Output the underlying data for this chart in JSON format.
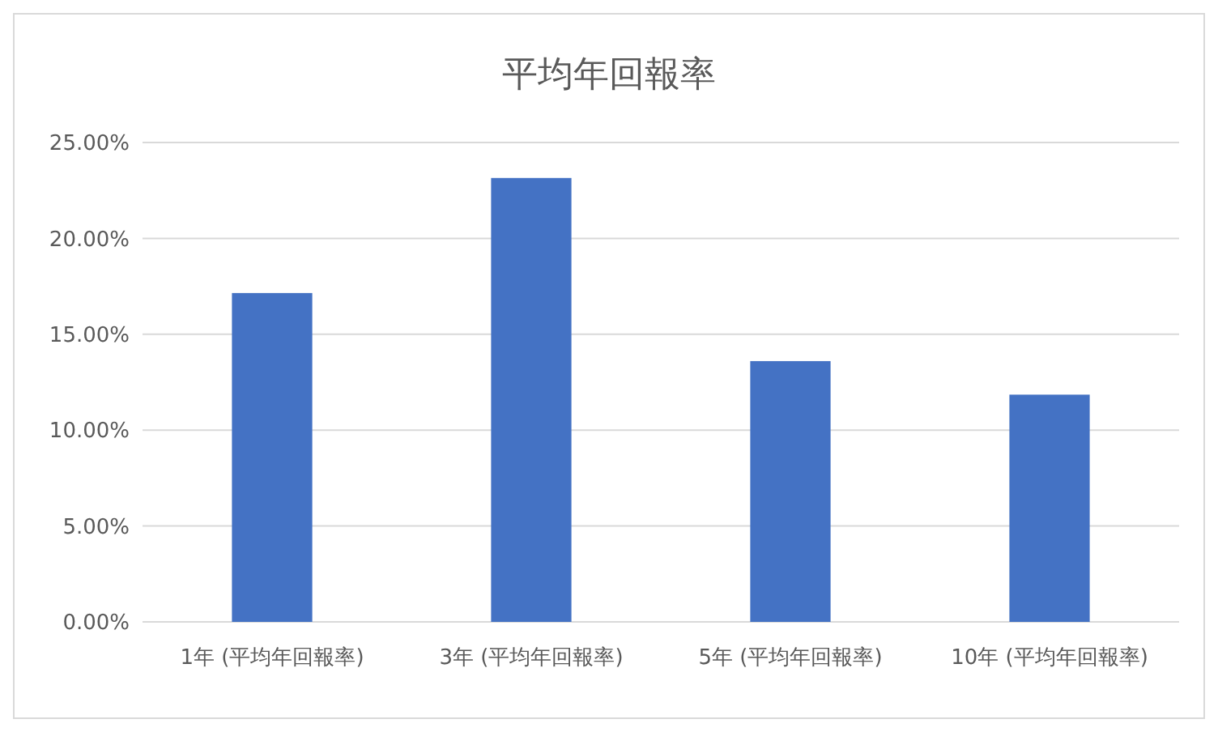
{
  "chart_data": {
    "type": "bar",
    "title": "平均年回報率",
    "categories": [
      "1年 (平均年回報率)",
      "3年 (平均年回報率)",
      "5年 (平均年回報率)",
      "10年 (平均年回報率)"
    ],
    "values": [
      17.15,
      23.15,
      13.6,
      11.85
    ],
    "color": "#4472c4",
    "ylim": [
      0,
      25
    ],
    "yticks": [
      {
        "value": 0,
        "label": "0.00%"
      },
      {
        "value": 5,
        "label": "5.00%"
      },
      {
        "value": 10,
        "label": "10.00%"
      },
      {
        "value": 15,
        "label": "15.00%"
      },
      {
        "value": 20,
        "label": "20.00%"
      },
      {
        "value": 25,
        "label": "25.00%"
      }
    ],
    "grid": "y"
  }
}
